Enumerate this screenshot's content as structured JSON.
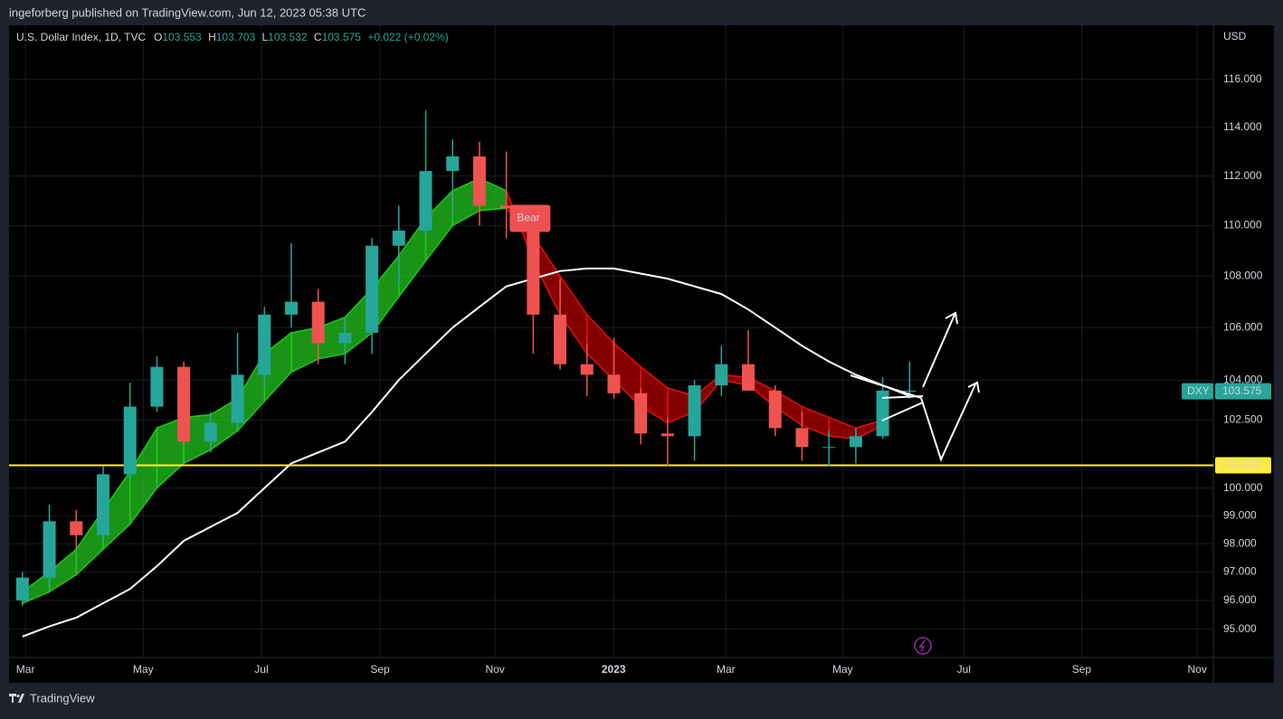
{
  "header": "ingeforberg published on TradingView.com, Jun 12, 2023 05:38 UTC",
  "footer": "TradingView",
  "chart_data": {
    "type": "candlestick",
    "symbol": "U.S. Dollar Index, 1D, TVC",
    "ohlc_legend": {
      "o_label": "O",
      "o": "103.553",
      "h_label": "H",
      "h": "103.703",
      "l_label": "L",
      "l": "103.532",
      "c_label": "C",
      "c": "103.575",
      "change": "+0.022 (+0.02%)"
    },
    "y_unit": "USD",
    "log_scale": true,
    "up_color": "#26a69a",
    "down_color": "#ef5350",
    "x": [
      0.5,
      1.5,
      2.5,
      3.5,
      4.5,
      5.5,
      6.5,
      7.5,
      8.5,
      9.5,
      10.5,
      11.5,
      12.5,
      13.5,
      14.5,
      15.5,
      16.5,
      17.5,
      18.5,
      19.5,
      20.5,
      21.5,
      22.5,
      23.5,
      24.5,
      25.5,
      26.5,
      27.5,
      28.5,
      29.5,
      30.5,
      31.5,
      32.5,
      33.5
    ],
    "open": [
      96.0,
      96.8,
      98.8,
      98.3,
      100.5,
      103.0,
      104.5,
      101.7,
      102.4,
      104.2,
      106.5,
      107.0,
      105.4,
      105.8,
      109.2,
      109.8,
      112.2,
      112.8,
      110.8,
      110.7,
      106.5,
      104.6,
      104.2,
      103.5,
      102.0,
      101.9,
      103.8,
      104.6,
      103.6,
      102.2,
      101.5,
      101.5,
      101.9,
      103.6
    ],
    "high": [
      97.0,
      99.4,
      99.2,
      100.8,
      103.9,
      104.9,
      104.7,
      102.8,
      105.8,
      106.8,
      109.3,
      107.5,
      106.4,
      109.5,
      110.8,
      114.7,
      113.5,
      113.4,
      113.0,
      110.8,
      107.9,
      105.4,
      105.6,
      103.7,
      102.6,
      104.0,
      105.3,
      105.9,
      103.8,
      102.8,
      102.1,
      102.2,
      104.1,
      104.7
    ],
    "low": [
      95.8,
      96.5,
      97.8,
      98.0,
      100.3,
      102.8,
      101.6,
      101.3,
      102.2,
      103.7,
      106.0,
      104.6,
      104.6,
      105.0,
      107.6,
      109.5,
      110.3,
      110.0,
      109.5,
      105.0,
      104.4,
      103.4,
      103.3,
      101.6,
      100.8,
      101.0,
      103.4,
      103.6,
      101.9,
      101.0,
      100.8,
      100.9,
      101.8,
      103.3
    ],
    "close": [
      96.8,
      98.8,
      98.3,
      100.5,
      103.0,
      104.5,
      101.7,
      102.4,
      104.2,
      106.5,
      107.0,
      105.4,
      105.8,
      109.2,
      109.8,
      112.2,
      112.8,
      110.8,
      110.7,
      106.5,
      104.6,
      104.2,
      103.5,
      102.0,
      101.9,
      103.8,
      104.6,
      103.6,
      102.2,
      101.5,
      101.5,
      101.9,
      103.6,
      103.6
    ],
    "ma_color": "#ffffff",
    "ma": [
      94.75,
      95.1,
      95.4,
      95.9,
      96.4,
      97.2,
      98.1,
      98.6,
      99.1,
      100.0,
      100.9,
      101.3,
      101.7,
      102.8,
      104.0,
      105.0,
      106.0,
      106.8,
      107.6,
      107.9,
      108.2,
      108.3,
      108.3,
      108.1,
      107.9,
      107.6,
      107.3,
      106.7,
      106.0,
      105.3,
      104.7,
      104.2,
      103.8,
      103.4
    ],
    "ribbon_bull_color": "#22c51e",
    "ribbon_bear_color": "#b00000",
    "ribbon_fast": [
      96.3,
      97.0,
      97.8,
      99.2,
      100.6,
      102.2,
      102.6,
      102.7,
      103.3,
      105.0,
      105.8,
      106.0,
      106.4,
      107.5,
      108.8,
      110.3,
      111.4,
      111.9,
      111.4,
      108.6,
      106.5,
      105.0,
      104.0,
      103.0,
      102.4,
      102.8,
      104.0,
      103.8,
      103.0,
      102.3,
      101.9,
      101.8,
      102.3,
      null
    ],
    "ribbon_slow": [
      95.9,
      96.3,
      96.9,
      97.8,
      98.7,
      100.0,
      100.9,
      101.4,
      102.1,
      103.2,
      104.3,
      104.8,
      105.0,
      105.8,
      107.2,
      108.6,
      110.0,
      110.6,
      110.7,
      109.6,
      108.0,
      106.5,
      105.4,
      104.5,
      103.7,
      103.4,
      104.2,
      104.1,
      103.6,
      103.0,
      102.6,
      102.2,
      102.5,
      null
    ],
    "signal_label": "Bear",
    "level": {
      "value": 100.828,
      "color": "#ffeb3b"
    },
    "last_price": {
      "name": "DXY",
      "value": 103.575
    },
    "xlim": [
      0,
      44.8
    ],
    "xticks": [
      {
        "value": 0.61,
        "label": "Mar"
      },
      {
        "value": 4.99,
        "label": "May"
      },
      {
        "value": 9.39,
        "label": "Jul"
      },
      {
        "value": 13.8,
        "label": "Sep"
      },
      {
        "value": 18.08,
        "label": "Nov"
      },
      {
        "value": 22.49,
        "label": "2023"
      },
      {
        "value": 26.67,
        "label": "Mar"
      },
      {
        "value": 31.01,
        "label": "May"
      },
      {
        "value": 35.52,
        "label": "Jul"
      },
      {
        "value": 39.9,
        "label": "Sep"
      },
      {
        "value": 44.2,
        "label": "Nov"
      }
    ],
    "ylim": [
      94.03,
      118.3
    ],
    "yticks": [
      {
        "value": 95,
        "label": "95.000"
      },
      {
        "value": 96,
        "label": "96.000"
      },
      {
        "value": 97,
        "label": "97.000"
      },
      {
        "value": 98,
        "label": "98.000"
      },
      {
        "value": 99,
        "label": "99.000"
      },
      {
        "value": 100,
        "label": "100.000"
      },
      {
        "value": 102.5,
        "label": "102.500"
      },
      {
        "value": 104,
        "label": "104.000"
      },
      {
        "value": 106,
        "label": "106.000"
      },
      {
        "value": 108,
        "label": "108.000"
      },
      {
        "value": 110,
        "label": "110.000"
      },
      {
        "value": 112,
        "label": "112.000"
      },
      {
        "value": 114,
        "label": "114.000"
      },
      {
        "value": 116,
        "label": "116.000"
      }
    ],
    "grid": true
  }
}
